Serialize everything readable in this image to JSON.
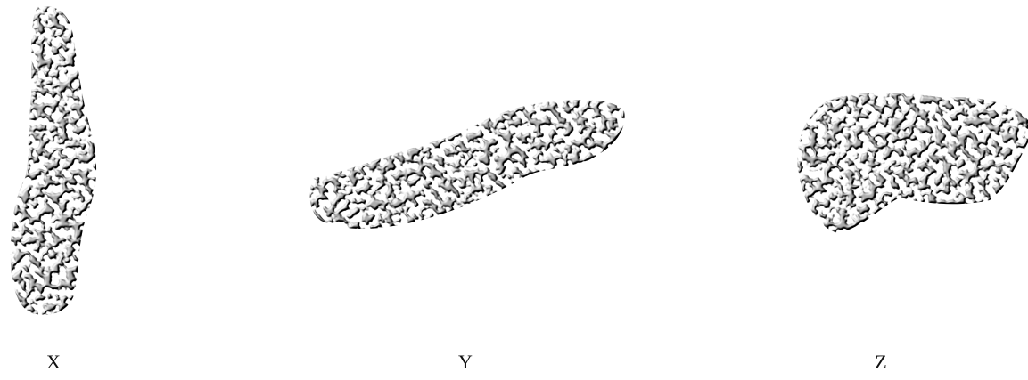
{
  "panels": [
    {
      "label": "X"
    },
    {
      "label": "Y"
    },
    {
      "label": "Z"
    }
  ]
}
